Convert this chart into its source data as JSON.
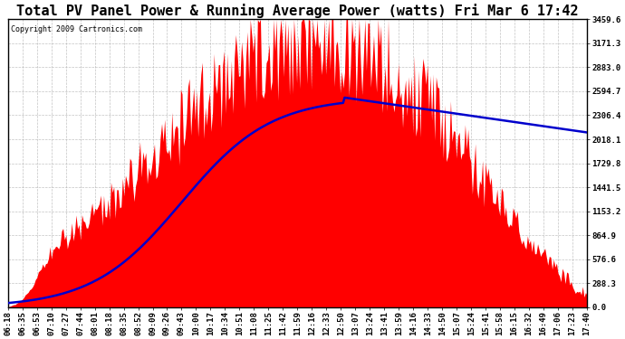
{
  "title": "Total PV Panel Power & Running Average Power (watts) Fri Mar 6 17:42",
  "copyright": "Copyright 2009 Cartronics.com",
  "background_color": "#ffffff",
  "plot_bg_color": "#ffffff",
  "grid_color": "#aaaaaa",
  "bar_color": "#ff0000",
  "line_color": "#0000cc",
  "ymax": 3459.6,
  "ymin": 0.0,
  "yticks": [
    0.0,
    288.3,
    576.6,
    864.9,
    1153.2,
    1441.5,
    1729.8,
    2018.1,
    2306.4,
    2594.7,
    2883.0,
    3171.3,
    3459.6
  ],
  "xtick_labels": [
    "06:18",
    "06:35",
    "06:53",
    "07:10",
    "07:27",
    "07:44",
    "08:01",
    "08:18",
    "08:35",
    "08:52",
    "09:09",
    "09:26",
    "09:43",
    "10:00",
    "10:17",
    "10:34",
    "10:51",
    "11:08",
    "11:25",
    "11:42",
    "11:59",
    "12:16",
    "12:33",
    "12:50",
    "13:07",
    "13:24",
    "13:41",
    "13:59",
    "14:16",
    "14:33",
    "14:50",
    "15:07",
    "15:24",
    "15:41",
    "15:58",
    "16:15",
    "16:32",
    "16:49",
    "17:06",
    "17:23",
    "17:40"
  ],
  "n_xticks": 41,
  "title_fontsize": 11,
  "tick_fontsize": 6.5,
  "copyright_fontsize": 6
}
